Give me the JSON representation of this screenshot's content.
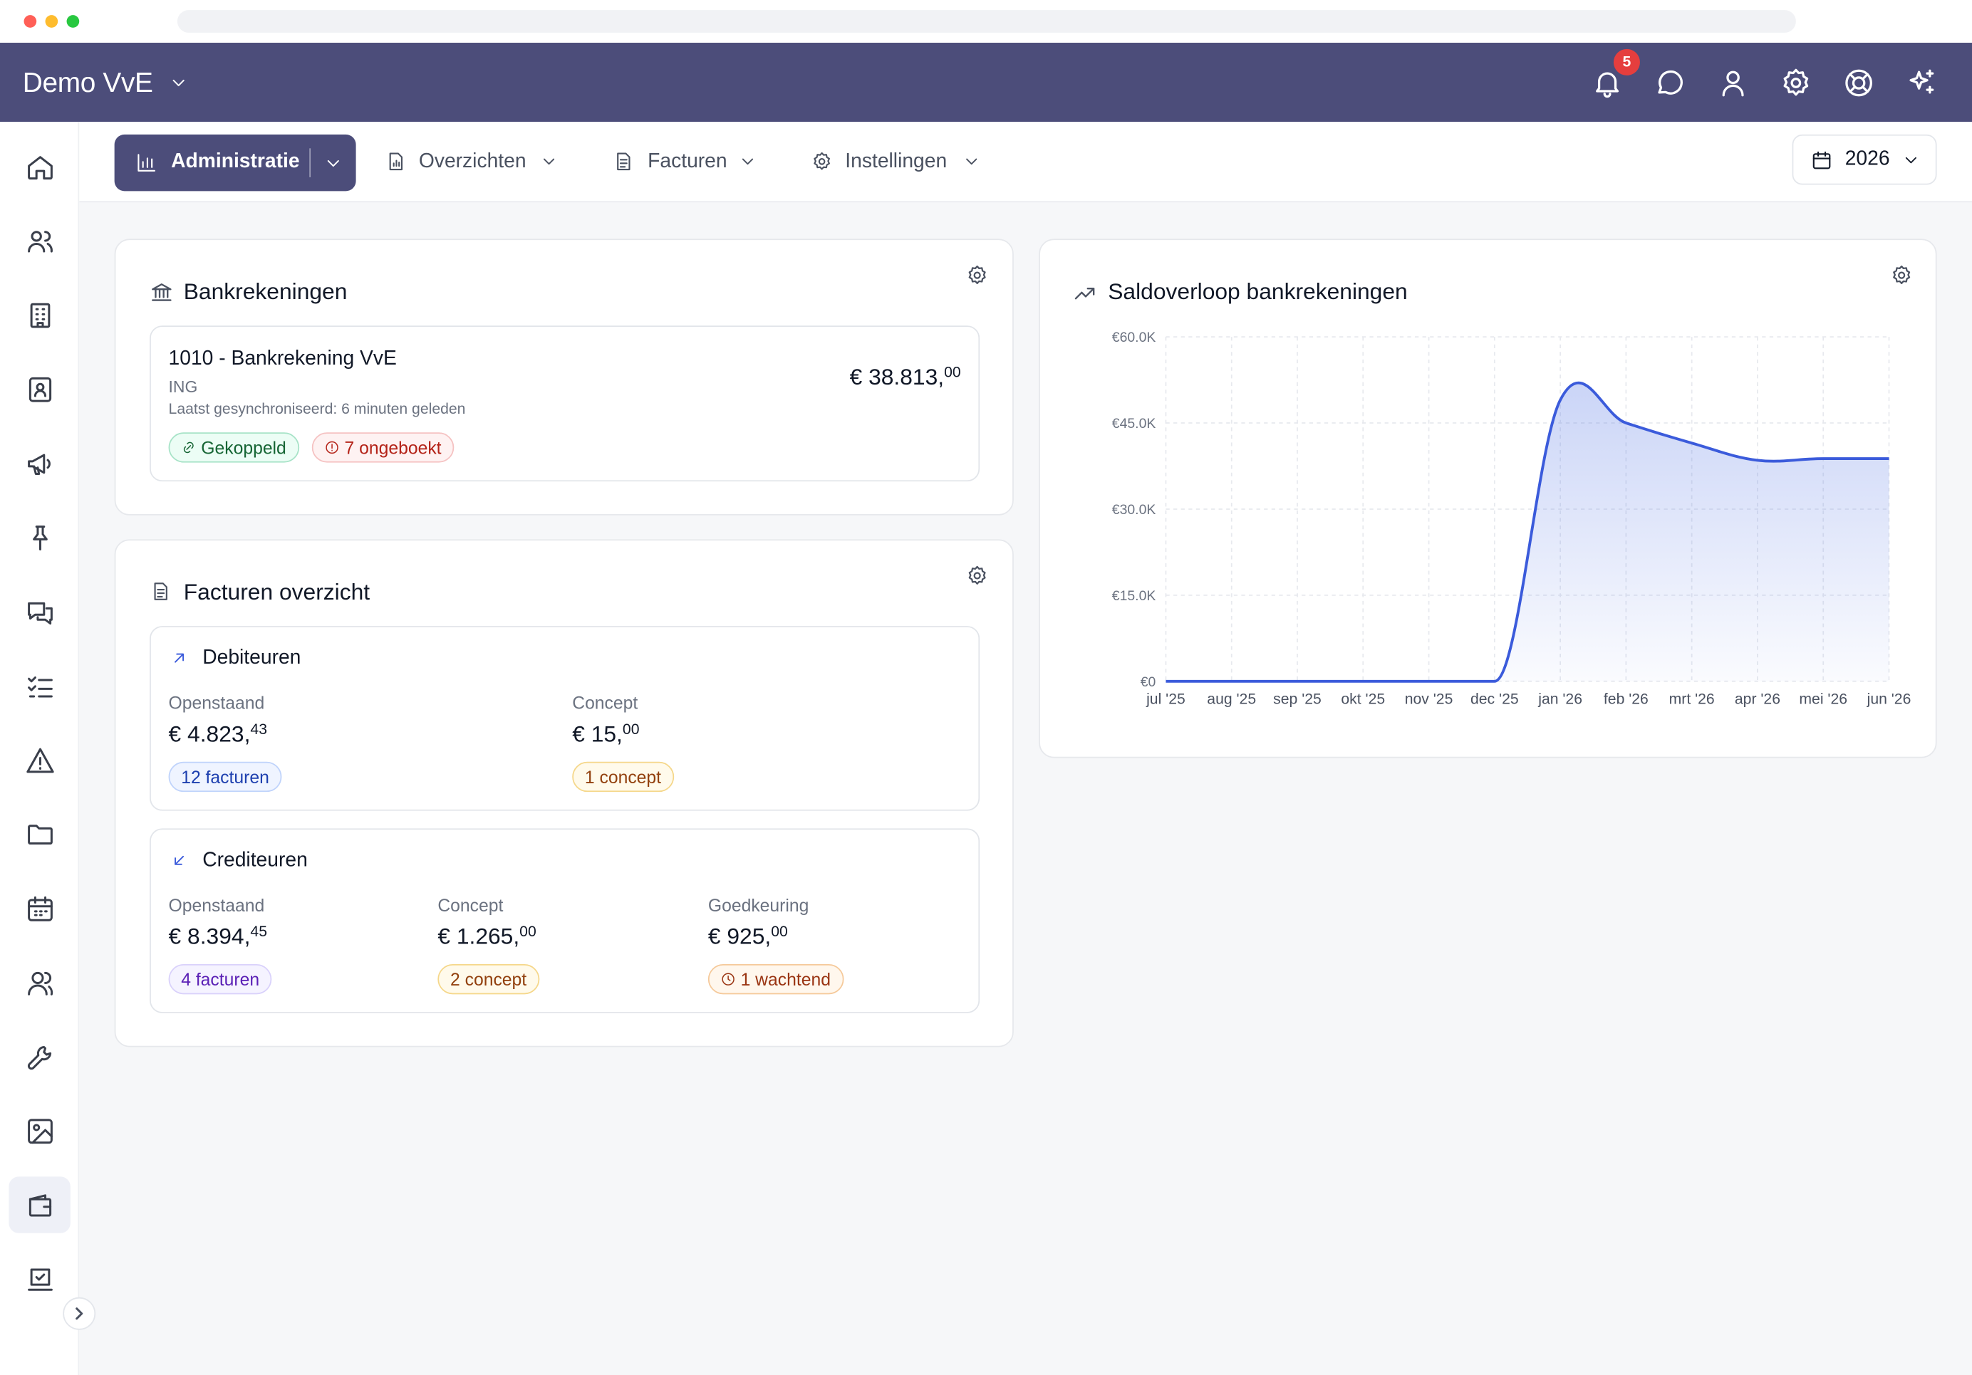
{
  "header": {
    "org_name": "Demo VvE",
    "notification_count": "5",
    "icons": [
      "bell-icon",
      "chat-icon",
      "user-icon",
      "settings-icon",
      "help-icon",
      "sparkles-icon"
    ]
  },
  "sidebar": {
    "icons": [
      "home-icon",
      "users-icon",
      "building-icon",
      "contact-icon",
      "megaphone-icon",
      "pin-icon",
      "messages-icon",
      "tasks-icon",
      "warning-icon",
      "folder-icon",
      "calendar-icon",
      "members-icon",
      "wrench-icon",
      "image-icon",
      "wallet-icon",
      "vote-icon"
    ],
    "active": "wallet-icon"
  },
  "subnav": {
    "tabs": [
      {
        "label": "Administratie",
        "icon": "bar-chart-icon",
        "active": true
      },
      {
        "label": "Overzichten",
        "icon": "report-icon"
      },
      {
        "label": "Facturen",
        "icon": "document-icon"
      },
      {
        "label": "Instellingen",
        "icon": "gear-icon"
      }
    ],
    "year": "2026"
  },
  "bank_card": {
    "title": "Bankrekeningen",
    "account": {
      "name": "1010 - Bankrekening VvE",
      "bank": "ING",
      "sync": "Laatst gesynchroniseerd: 6 minuten geleden",
      "amount_main": "€ 38.813,",
      "amount_cents": "00",
      "linked_label": "Gekoppeld",
      "unbooked_label": "7 ongeboekt"
    }
  },
  "invoices_card": {
    "title": "Facturen overzicht",
    "debtors": {
      "title": "Debiteuren",
      "open_label": "Openstaand",
      "open_amount": "€ 4.823,",
      "open_cents": "43",
      "open_badge": "12 facturen",
      "concept_label": "Concept",
      "concept_amount": "€ 15,",
      "concept_cents": "00",
      "concept_badge": "1 concept"
    },
    "creditors": {
      "title": "Crediteuren",
      "open_label": "Openstaand",
      "open_amount": "€ 8.394,",
      "open_cents": "45",
      "open_badge": "4 facturen",
      "concept_label": "Concept",
      "concept_amount": "€ 1.265,",
      "concept_cents": "00",
      "concept_badge": "2 concept",
      "approval_label": "Goedkeuring",
      "approval_amount": "€ 925,",
      "approval_cents": "00",
      "approval_badge": "1 wachtend"
    }
  },
  "balance_card": {
    "title": "Saldoverloop bankrekeningen"
  },
  "chart_data": {
    "type": "area",
    "title": "Saldoverloop bankrekeningen",
    "categories": [
      "jul '25",
      "aug '25",
      "sep '25",
      "okt '25",
      "nov '25",
      "dec '25",
      "jan '26",
      "feb '26",
      "mrt '26",
      "apr '26",
      "mei '26",
      "jun '26"
    ],
    "series": [
      {
        "values": [
          0,
          0,
          0,
          0,
          0,
          0,
          49000,
          45000,
          41500,
          38500,
          38800,
          38800
        ]
      }
    ],
    "y_ticks": [
      "€0",
      "€15.0K",
      "€30.0K",
      "€45.0K",
      "€60.0K"
    ],
    "ylim": [
      0,
      60000
    ],
    "grid": true,
    "color": "#3b5bdb"
  }
}
